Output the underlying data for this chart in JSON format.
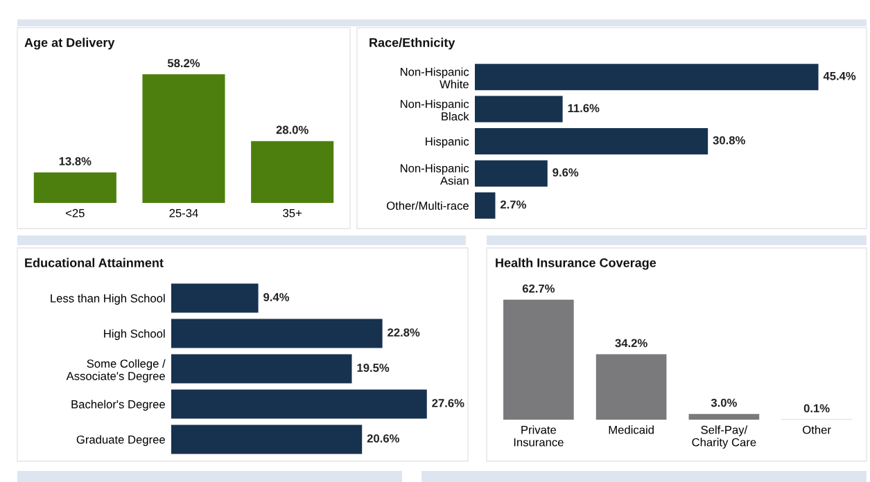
{
  "chart_data": [
    {
      "type": "bar",
      "title": "Age at Delivery",
      "categories": [
        "<25",
        "25-34",
        "35+"
      ],
      "values": [
        13.8,
        58.2,
        28.0
      ],
      "value_labels": [
        "13.8%",
        "58.2%",
        "28.0%"
      ],
      "color": "#4d7f0e",
      "tick_labels": "x"
    },
    {
      "type": "bar",
      "title": "Race/Ethnicity",
      "orientation": "horizontal",
      "categories": [
        "Non-Hispanic\nWhite",
        "Non-Hispanic\nBlack",
        "Hispanic",
        "Non-Hispanic\nAsian",
        "Other/Multi-race"
      ],
      "values": [
        45.4,
        11.6,
        30.8,
        9.6,
        2.7
      ],
      "value_labels": [
        "45.4%",
        "11.6%",
        "30.8%",
        "9.6%",
        "2.7%"
      ],
      "color": "#17324f",
      "tick_labels": "y"
    },
    {
      "type": "bar",
      "title": "Educational Attainment",
      "orientation": "horizontal",
      "categories": [
        "Less than High School",
        "High School",
        "Some College /\nAssociate's Degree",
        "Bachelor's Degree",
        "Graduate Degree"
      ],
      "values": [
        9.4,
        22.8,
        19.5,
        27.6,
        20.6
      ],
      "value_labels": [
        "9.4%",
        "22.8%",
        "19.5%",
        "27.6%",
        "20.6%"
      ],
      "color": "#17324f",
      "tick_labels": "y"
    },
    {
      "type": "bar",
      "title": "Health Insurance Coverage",
      "categories": [
        "Private\nInsurance",
        "Medicaid",
        "Self-Pay/\nCharity Care",
        "Other"
      ],
      "values": [
        62.7,
        34.2,
        3.0,
        0.1
      ],
      "value_labels": [
        "62.7%",
        "34.2%",
        "3.0%",
        "0.1%"
      ],
      "color": "#7a797c",
      "tick_labels": "x"
    }
  ]
}
